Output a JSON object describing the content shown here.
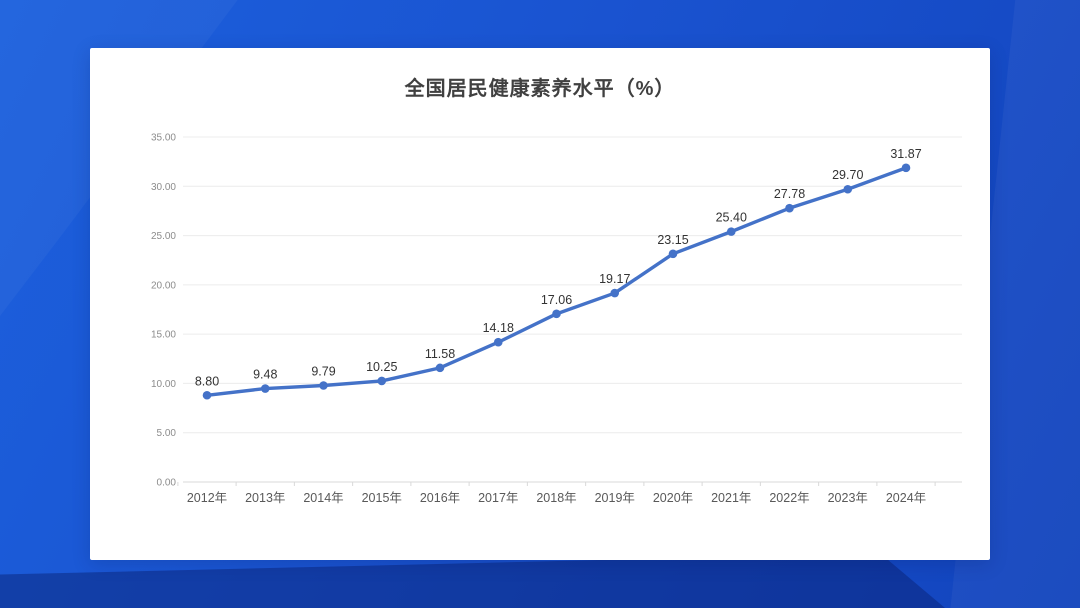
{
  "page": {
    "background_colors": {
      "gradient_start": "#1c60dd",
      "gradient_mid": "#1a53d0",
      "gradient_end": "#1244bd",
      "bottom_band": "#0d2f9e"
    }
  },
  "chart_data": {
    "type": "line",
    "title": "全国居民健康素养水平（%）",
    "categories": [
      "2012年",
      "2013年",
      "2014年",
      "2015年",
      "2016年",
      "2017年",
      "2018年",
      "2019年",
      "2020年",
      "2021年",
      "2022年",
      "2023年",
      "2024年"
    ],
    "values": [
      8.8,
      9.48,
      9.79,
      10.25,
      11.58,
      14.18,
      17.06,
      19.17,
      23.15,
      25.4,
      27.78,
      29.7,
      31.87
    ],
    "xlabel": "",
    "ylabel": "",
    "ylim": [
      0,
      35
    ],
    "y_tick_step": 5,
    "y_tick_decimals": 2,
    "value_label_decimals": 2,
    "grid": true,
    "legend": "none",
    "colors": {
      "line": "#4472c8",
      "marker": "#4472c8",
      "value_label": "#333333",
      "y_tick_label": "#8c8c8c",
      "x_tick_label": "#595959",
      "gridline": "#ececec",
      "axis_line": "#d9d9d9",
      "title": "#404040"
    }
  }
}
